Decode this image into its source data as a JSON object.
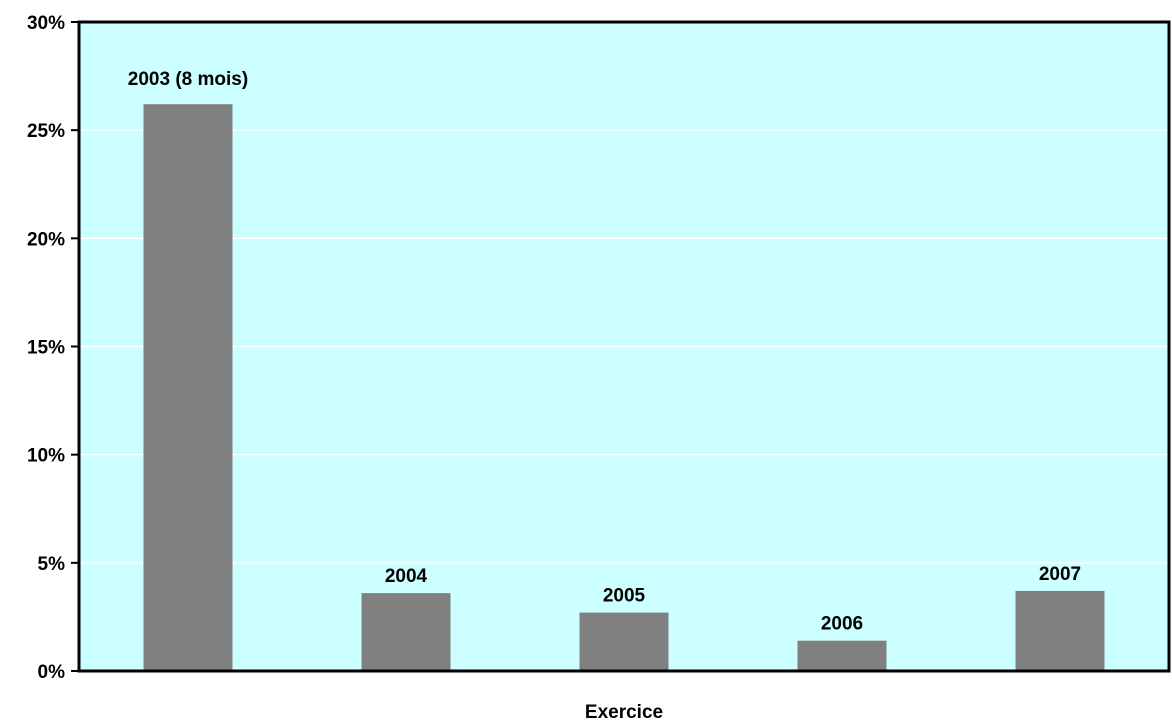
{
  "chart_data": {
    "type": "bar",
    "categories": [
      "2003 (8 mois)",
      "2004",
      "2005",
      "2006",
      "2007"
    ],
    "values": [
      26.2,
      3.6,
      2.7,
      1.4,
      3.7
    ],
    "xlabel": "Exercice",
    "ylabel": "",
    "ylim": [
      0,
      30
    ],
    "yticks": [
      "0%",
      "5%",
      "10%",
      "15%",
      "20%",
      "25%",
      "30%"
    ],
    "grid": true,
    "legend": "none",
    "colors": {
      "plot_background": "#ccffff",
      "bar": "#808080",
      "gridline": "#ffffff",
      "axis": "#000000"
    }
  }
}
